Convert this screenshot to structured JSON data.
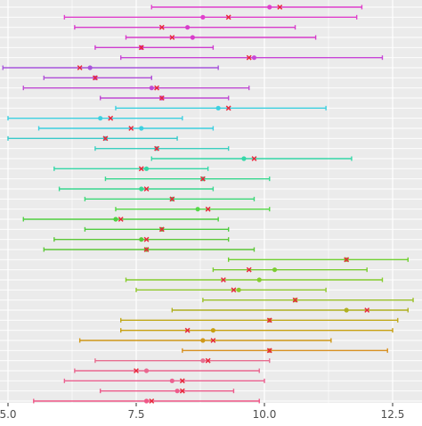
{
  "chart_data": {
    "type": "scatter",
    "subtype": "interval-dot-plot",
    "title": "",
    "xlabel": "",
    "ylabel": "",
    "xlim": [
      4.9,
      13.0
    ],
    "xticks": [
      5.0,
      7.5,
      10.0,
      12.5
    ],
    "xtick_labels": [
      "5.0",
      "7.5",
      "10.0",
      "12.5"
    ],
    "grid": true,
    "background": "#ebebeb",
    "grid_color": "#ffffff",
    "cross_color": "#e8283c",
    "rows": [
      {
        "lo": 7.8,
        "hi": 11.9,
        "dot": 10.1,
        "cross": 10.3,
        "color": "#e040cc"
      },
      {
        "lo": 6.1,
        "hi": 11.8,
        "dot": 8.8,
        "cross": 9.3,
        "color": "#e040cc"
      },
      {
        "lo": 6.3,
        "hi": 10.6,
        "dot": 8.5,
        "cross": 8.0,
        "color": "#d83ccb"
      },
      {
        "lo": 7.3,
        "hi": 11.0,
        "dot": 8.6,
        "cross": 8.2,
        "color": "#d83ccb"
      },
      {
        "lo": 6.7,
        "hi": 9.0,
        "dot": 7.6,
        "cross": 7.6,
        "color": "#cf3cd0"
      },
      {
        "lo": 7.2,
        "hi": 12.3,
        "dot": 9.8,
        "cross": 9.7,
        "color": "#c845d8"
      },
      {
        "lo": 4.9,
        "hi": 9.1,
        "dot": 6.6,
        "cross": 6.4,
        "color": "#a855dc"
      },
      {
        "lo": 5.7,
        "hi": 7.8,
        "dot": 6.7,
        "cross": 6.7,
        "color": "#b04ed8"
      },
      {
        "lo": 5.3,
        "hi": 9.7,
        "dot": 7.8,
        "cross": 7.9,
        "color": "#c04ad4"
      },
      {
        "lo": 6.8,
        "hi": 9.3,
        "dot": 8.0,
        "cross": 8.0,
        "color": "#c04ad4"
      },
      {
        "lo": 7.1,
        "hi": 11.2,
        "dot": 9.1,
        "cross": 9.3,
        "color": "#3dd0e0"
      },
      {
        "lo": 5.0,
        "hi": 8.4,
        "dot": 6.8,
        "cross": 7.0,
        "color": "#3dd0e0"
      },
      {
        "lo": 5.6,
        "hi": 9.0,
        "dot": 7.6,
        "cross": 7.4,
        "color": "#3dd0e0"
      },
      {
        "lo": 5.0,
        "hi": 8.3,
        "dot": 6.9,
        "cross": 6.9,
        "color": "#3acaca"
      },
      {
        "lo": 6.7,
        "hi": 9.3,
        "dot": 7.9,
        "cross": 7.9,
        "color": "#3ad0c0"
      },
      {
        "lo": 7.8,
        "hi": 11.7,
        "dot": 9.6,
        "cross": 9.8,
        "color": "#35d8a8"
      },
      {
        "lo": 5.9,
        "hi": 8.9,
        "dot": 7.7,
        "cross": 7.6,
        "color": "#35d8a8"
      },
      {
        "lo": 6.9,
        "hi": 10.1,
        "dot": 8.8,
        "cross": 8.8,
        "color": "#38d890"
      },
      {
        "lo": 6.0,
        "hi": 9.0,
        "dot": 7.6,
        "cross": 7.7,
        "color": "#38d890"
      },
      {
        "lo": 6.5,
        "hi": 9.8,
        "dot": 8.2,
        "cross": 8.2,
        "color": "#3cd878"
      },
      {
        "lo": 7.1,
        "hi": 10.1,
        "dot": 8.7,
        "cross": 8.9,
        "color": "#55d848"
      },
      {
        "lo": 5.3,
        "hi": 9.1,
        "dot": 7.1,
        "cross": 7.2,
        "color": "#4fd040"
      },
      {
        "lo": 6.5,
        "hi": 9.3,
        "dot": 8.0,
        "cross": 8.0,
        "color": "#4fcc40"
      },
      {
        "lo": 5.9,
        "hi": 9.3,
        "dot": 7.6,
        "cross": 7.7,
        "color": "#5cc838"
      },
      {
        "lo": 5.7,
        "hi": 9.8,
        "dot": 7.7,
        "cross": 7.7,
        "color": "#5cc838"
      },
      {
        "lo": 9.3,
        "hi": 12.8,
        "dot": 11.6,
        "cross": 11.6,
        "color": "#70d030"
      },
      {
        "lo": 9.0,
        "hi": 12.0,
        "dot": 10.2,
        "cross": 9.7,
        "color": "#7acc30"
      },
      {
        "lo": 7.3,
        "hi": 12.3,
        "dot": 9.9,
        "cross": 9.2,
        "color": "#85cc2c"
      },
      {
        "lo": 7.5,
        "hi": 11.2,
        "dot": 9.5,
        "cross": 9.4,
        "color": "#90c82c"
      },
      {
        "lo": 8.8,
        "hi": 12.9,
        "dot": 10.6,
        "cross": 10.6,
        "color": "#9bc028"
      },
      {
        "lo": 8.2,
        "hi": 12.8,
        "dot": 11.6,
        "cross": 12.0,
        "color": "#b0b020"
      },
      {
        "lo": 7.2,
        "hi": 12.6,
        "dot": 10.1,
        "cross": 10.1,
        "color": "#c0a818"
      },
      {
        "lo": 7.2,
        "hi": 12.5,
        "dot": 9.0,
        "cross": 8.5,
        "color": "#c8a010"
      },
      {
        "lo": 6.4,
        "hi": 11.3,
        "dot": 8.8,
        "cross": 9.0,
        "color": "#d09818"
      },
      {
        "lo": 8.4,
        "hi": 12.4,
        "dot": 10.1,
        "cross": 10.1,
        "color": "#d89020"
      },
      {
        "lo": 6.7,
        "hi": 10.1,
        "dot": 8.8,
        "cross": 8.9,
        "color": "#e86e90"
      },
      {
        "lo": 6.3,
        "hi": 9.9,
        "dot": 7.7,
        "cross": 7.5,
        "color": "#ea6890"
      },
      {
        "lo": 6.1,
        "hi": 10.0,
        "dot": 8.2,
        "cross": 8.4,
        "color": "#ec6090"
      },
      {
        "lo": 6.8,
        "hi": 9.4,
        "dot": 8.3,
        "cross": 8.4,
        "color": "#ee5c8c"
      },
      {
        "lo": 5.5,
        "hi": 9.9,
        "dot": 7.7,
        "cross": 7.8,
        "color": "#f05888"
      }
    ]
  }
}
